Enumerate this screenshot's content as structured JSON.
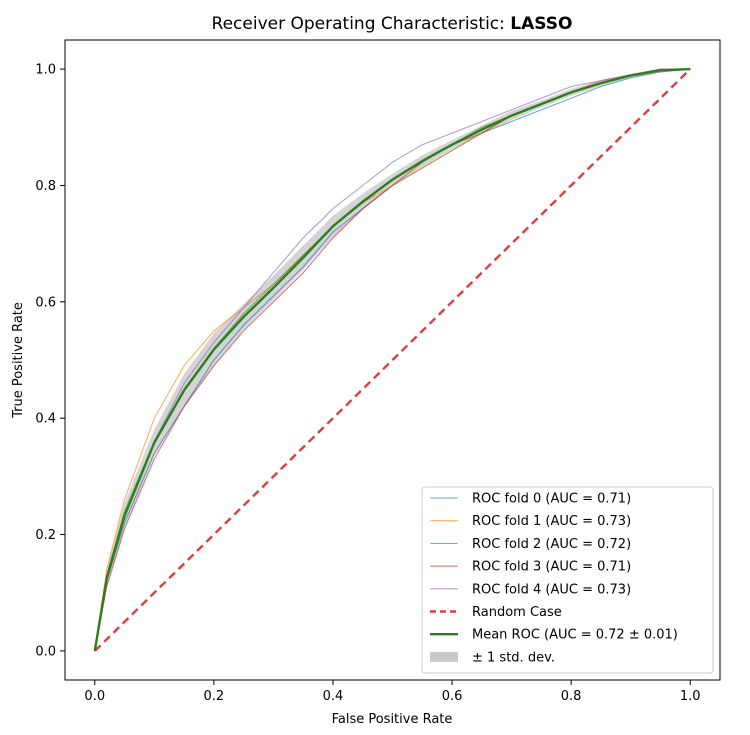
{
  "chart_data": {
    "type": "line",
    "title_prefix": "Receiver Operating Characteristic: ",
    "title_model": "LASSO",
    "xlabel": "False Positive Rate",
    "ylabel": "True Positive Rate",
    "xlim": [
      -0.05,
      1.05
    ],
    "ylim": [
      -0.05,
      1.05
    ],
    "xticks": [
      "0.0",
      "0.2",
      "0.4",
      "0.6",
      "0.8",
      "1.0"
    ],
    "yticks": [
      "0.0",
      "0.2",
      "0.4",
      "0.6",
      "0.8",
      "1.0"
    ],
    "legend_position": "lower-right",
    "x": [
      0,
      0.02,
      0.05,
      0.1,
      0.15,
      0.2,
      0.25,
      0.3,
      0.35,
      0.4,
      0.45,
      0.5,
      0.55,
      0.6,
      0.65,
      0.7,
      0.75,
      0.8,
      0.85,
      0.9,
      0.95,
      1.0
    ],
    "series": [
      {
        "name": "ROC fold 0 (AUC = 0.71)",
        "color": "#1f77b4",
        "values": [
          0,
          0.12,
          0.22,
          0.34,
          0.42,
          0.5,
          0.56,
          0.61,
          0.66,
          0.72,
          0.76,
          0.8,
          0.83,
          0.86,
          0.89,
          0.91,
          0.93,
          0.95,
          0.97,
          0.985,
          0.995,
          1.0
        ]
      },
      {
        "name": "ROC fold 1 (AUC = 0.73)",
        "color": "#ff7f0e",
        "values": [
          0,
          0.14,
          0.26,
          0.4,
          0.49,
          0.55,
          0.59,
          0.63,
          0.68,
          0.73,
          0.77,
          0.8,
          0.83,
          0.86,
          0.89,
          0.92,
          0.94,
          0.96,
          0.98,
          0.99,
          1.0,
          1.0
        ]
      },
      {
        "name": "ROC fold 2 (AUC = 0.72)",
        "color": "#2ca02c",
        "values": [
          0,
          0.13,
          0.24,
          0.36,
          0.45,
          0.52,
          0.58,
          0.63,
          0.68,
          0.73,
          0.77,
          0.81,
          0.84,
          0.87,
          0.9,
          0.92,
          0.94,
          0.96,
          0.975,
          0.99,
          0.997,
          1.0
        ]
      },
      {
        "name": "ROC fold 3 (AUC = 0.71)",
        "color": "#d62728",
        "values": [
          0,
          0.11,
          0.21,
          0.33,
          0.42,
          0.49,
          0.55,
          0.6,
          0.65,
          0.71,
          0.76,
          0.8,
          0.84,
          0.87,
          0.89,
          0.92,
          0.94,
          0.96,
          0.975,
          0.99,
          0.997,
          1.0
        ]
      },
      {
        "name": "ROC fold 4 (AUC = 0.73)",
        "color": "#9467bd",
        "values": [
          0,
          0.12,
          0.23,
          0.36,
          0.46,
          0.53,
          0.59,
          0.65,
          0.71,
          0.76,
          0.8,
          0.84,
          0.87,
          0.89,
          0.91,
          0.93,
          0.95,
          0.97,
          0.98,
          0.99,
          1.0,
          1.0
        ]
      },
      {
        "name": "Random Case",
        "color": "#e03c3c",
        "dashed": true,
        "values": [
          0,
          0.02,
          0.05,
          0.1,
          0.15,
          0.2,
          0.25,
          0.3,
          0.35,
          0.4,
          0.45,
          0.5,
          0.55,
          0.6,
          0.65,
          0.7,
          0.75,
          0.8,
          0.85,
          0.9,
          0.95,
          1.0
        ]
      },
      {
        "name": "Mean ROC (AUC = 0.72 ± 0.01)",
        "color": "#2e7d1f",
        "values": [
          0,
          0.124,
          0.232,
          0.358,
          0.448,
          0.518,
          0.574,
          0.624,
          0.676,
          0.73,
          0.772,
          0.81,
          0.842,
          0.87,
          0.896,
          0.92,
          0.94,
          0.96,
          0.976,
          0.989,
          0.998,
          1.0
        ]
      }
    ],
    "band": {
      "name": "± 1 std. dev.",
      "color": "#b0b0b0",
      "lower": [
        0,
        0.11,
        0.21,
        0.335,
        0.42,
        0.49,
        0.552,
        0.603,
        0.655,
        0.712,
        0.758,
        0.8,
        0.832,
        0.862,
        0.889,
        0.912,
        0.934,
        0.954,
        0.971,
        0.986,
        0.995,
        1.0
      ],
      "upper": [
        0,
        0.138,
        0.254,
        0.381,
        0.476,
        0.546,
        0.596,
        0.645,
        0.697,
        0.748,
        0.786,
        0.82,
        0.852,
        0.878,
        0.903,
        0.928,
        0.946,
        0.966,
        0.981,
        0.992,
        1.0,
        1.0
      ]
    }
  }
}
